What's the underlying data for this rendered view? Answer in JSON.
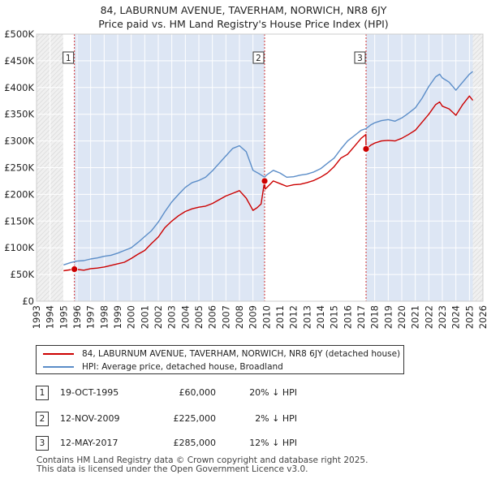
{
  "title_line1": "84, LABURNUM AVENUE, TAVERHAM, NORWICH, NR8 6JY",
  "title_line2": "Price paid vs. HM Land Registry's House Price Index (HPI)",
  "colors": {
    "property": "#cc0000",
    "hpi": "#5b8dc8",
    "shade": "#dde6f4",
    "marker": "#cc0000"
  },
  "chart_data": {
    "type": "line",
    "xlim": [
      1993,
      2026
    ],
    "ylim": [
      0,
      500000
    ],
    "y_ticks": [
      0,
      50000,
      100000,
      150000,
      200000,
      250000,
      300000,
      350000,
      400000,
      450000,
      500000
    ],
    "y_tick_labels": [
      "£0",
      "£50K",
      "£100K",
      "£150K",
      "£200K",
      "£250K",
      "£300K",
      "£350K",
      "£400K",
      "£450K",
      "£500K"
    ],
    "x_ticks": [
      1993,
      1994,
      1995,
      1996,
      1997,
      1998,
      1999,
      2000,
      2001,
      2002,
      2003,
      2004,
      2005,
      2006,
      2007,
      2008,
      2009,
      2010,
      2011,
      2012,
      2013,
      2014,
      2015,
      2016,
      2017,
      2018,
      2019,
      2020,
      2021,
      2022,
      2023,
      2024,
      2025,
      2026
    ],
    "x_tick_labels": [
      "1993",
      "1994",
      "1995",
      "1996",
      "1997",
      "1998",
      "1999",
      "2000",
      "2001",
      "2002",
      "2003",
      "2004",
      "2005",
      "2006",
      "2007",
      "2008",
      "2009",
      "2010",
      "2011",
      "2012",
      "2013",
      "2014",
      "2015",
      "2016",
      "2017",
      "2018",
      "2019",
      "2020",
      "2021",
      "2022",
      "2023",
      "2024",
      "2025",
      "2026"
    ],
    "data_range": [
      1995.0,
      2025.25
    ],
    "series": [
      {
        "name": "84, LABURNUM AVENUE, TAVERHAM, NORWICH, NR8 6JY (detached house)",
        "x": [
          1995.0,
          1995.8,
          1996.5,
          1997.0,
          1997.5,
          1998.0,
          1998.5,
          1999.0,
          1999.5,
          2000.0,
          2000.5,
          2001.0,
          2001.5,
          2002.0,
          2002.5,
          2003.0,
          2003.5,
          2004.0,
          2004.5,
          2005.0,
          2005.5,
          2006.0,
          2006.5,
          2007.0,
          2007.5,
          2008.0,
          2008.5,
          2009.0,
          2009.3,
          2009.6,
          2009.86,
          2009.9,
          2010.0,
          2010.5,
          2011.0,
          2011.5,
          2012.0,
          2012.5,
          2013.0,
          2013.5,
          2014.0,
          2014.5,
          2015.0,
          2015.5,
          2016.0,
          2016.5,
          2017.0,
          2017.35,
          2017.36,
          2017.7,
          2018.0,
          2018.5,
          2019.0,
          2019.5,
          2020.0,
          2020.5,
          2021.0,
          2021.5,
          2022.0,
          2022.5,
          2022.8,
          2023.0,
          2023.5,
          2024.0,
          2024.5,
          2025.0,
          2025.25
        ],
        "values": [
          57000,
          60000,
          58000,
          61000,
          62000,
          64000,
          67000,
          70000,
          73000,
          80000,
          88000,
          95000,
          108000,
          120000,
          138000,
          150000,
          160000,
          168000,
          173000,
          176000,
          178000,
          183000,
          190000,
          197000,
          202000,
          207000,
          193000,
          170000,
          175000,
          182000,
          225000,
          210000,
          212000,
          225000,
          220000,
          215000,
          218000,
          219000,
          222000,
          226000,
          232000,
          240000,
          252000,
          268000,
          275000,
          290000,
          305000,
          312000,
          285000,
          292000,
          296000,
          300000,
          301000,
          300000,
          305000,
          312000,
          320000,
          335000,
          350000,
          368000,
          373000,
          365000,
          360000,
          348000,
          368000,
          384000,
          376000
        ]
      },
      {
        "name": "HPI: Average price, detached house, Broadland",
        "x": [
          1995.0,
          1995.5,
          1996.0,
          1996.5,
          1997.0,
          1997.5,
          1998.0,
          1998.5,
          1999.0,
          1999.5,
          2000.0,
          2000.5,
          2001.0,
          2001.5,
          2002.0,
          2002.5,
          2003.0,
          2003.5,
          2004.0,
          2004.5,
          2005.0,
          2005.5,
          2006.0,
          2006.5,
          2007.0,
          2007.5,
          2008.0,
          2008.5,
          2009.0,
          2009.5,
          2009.86,
          2010.0,
          2010.5,
          2011.0,
          2011.5,
          2012.0,
          2012.5,
          2013.0,
          2013.5,
          2014.0,
          2014.5,
          2015.0,
          2015.5,
          2016.0,
          2016.5,
          2017.0,
          2017.35,
          2017.7,
          2018.0,
          2018.5,
          2019.0,
          2019.5,
          2020.0,
          2020.5,
          2021.0,
          2021.5,
          2022.0,
          2022.5,
          2022.8,
          2023.0,
          2023.5,
          2024.0,
          2024.5,
          2025.0,
          2025.25
        ],
        "values": [
          68000,
          72000,
          75000,
          76000,
          79000,
          81000,
          84000,
          86000,
          90000,
          95000,
          100000,
          110000,
          121000,
          132000,
          148000,
          168000,
          186000,
          200000,
          213000,
          222000,
          226000,
          232000,
          244000,
          258000,
          272000,
          286000,
          291000,
          280000,
          245000,
          238000,
          232000,
          236000,
          245000,
          240000,
          232000,
          233000,
          236000,
          238000,
          242000,
          248000,
          258000,
          268000,
          285000,
          300000,
          310000,
          320000,
          323000,
          330000,
          334000,
          338000,
          340000,
          337000,
          343000,
          352000,
          362000,
          380000,
          402000,
          420000,
          425000,
          418000,
          410000,
          395000,
          410000,
          425000,
          430000
        ]
      }
    ],
    "sale_markers": [
      {
        "id": "1",
        "x": 1995.8,
        "value": 60000
      },
      {
        "id": "2",
        "x": 2009.86,
        "value": 225000
      },
      {
        "id": "3",
        "x": 2017.36,
        "value": 285000
      }
    ]
  },
  "legend": {
    "property": "84, LABURNUM AVENUE, TAVERHAM, NORWICH, NR8 6JY (detached house)",
    "hpi": "HPI: Average price, detached house, Broadland"
  },
  "transactions": [
    {
      "num": "1",
      "date": "19-OCT-1995",
      "price": "£60,000",
      "hpi": "20% ↓ HPI"
    },
    {
      "num": "2",
      "date": "12-NOV-2009",
      "price": "£225,000",
      "hpi": "2% ↓ HPI"
    },
    {
      "num": "3",
      "date": "12-MAY-2017",
      "price": "£285,000",
      "hpi": "12% ↓ HPI"
    }
  ],
  "footer": {
    "line1": "Contains HM Land Registry data © Crown copyright and database right 2025.",
    "line2": "This data is licensed under the Open Government Licence v3.0."
  }
}
